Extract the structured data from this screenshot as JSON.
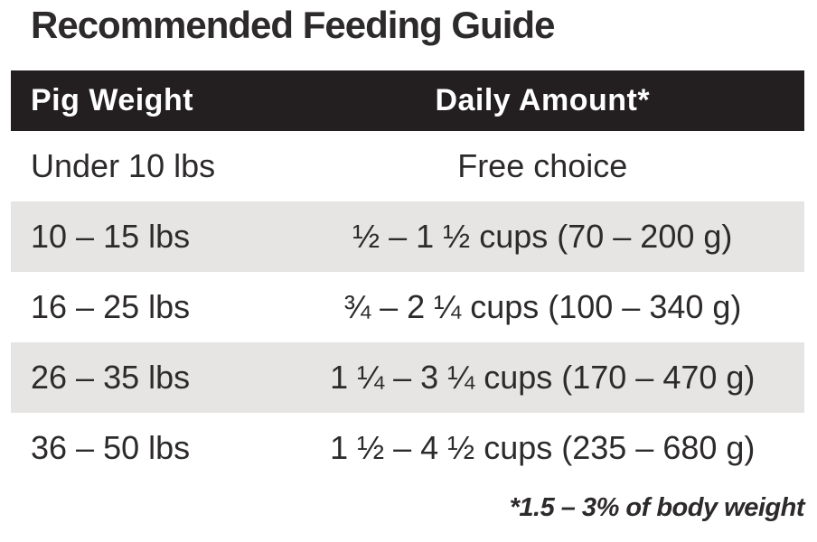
{
  "title": "Recommended Feeding Guide",
  "table": {
    "columns": [
      {
        "label": "Pig Weight"
      },
      {
        "label": "Daily Amount*"
      }
    ],
    "rows": [
      {
        "weight": "Under 10 lbs",
        "amount": "Free choice"
      },
      {
        "weight": "10 – 15 lbs",
        "amount": "½ – 1 ½ cups (70 – 200 g)"
      },
      {
        "weight": "16 – 25 lbs",
        "amount": "¾ – 2 ¼ cups (100 – 340 g)"
      },
      {
        "weight": "26 – 35 lbs",
        "amount": "1 ¼ – 3 ¼ cups (170 – 470 g)"
      },
      {
        "weight": "36 – 50 lbs",
        "amount": "1 ½ – 4 ½ cups (235 – 680 g)"
      }
    ]
  },
  "footnote": "*1.5 – 3% of body weight",
  "colors": {
    "page_bg": "#ffffff",
    "header_bg": "#231f20",
    "header_text": "#ffffff",
    "row_bg": "#ffffff",
    "row_alt_bg": "#e6e5e4",
    "text": "#2d2a2b"
  }
}
